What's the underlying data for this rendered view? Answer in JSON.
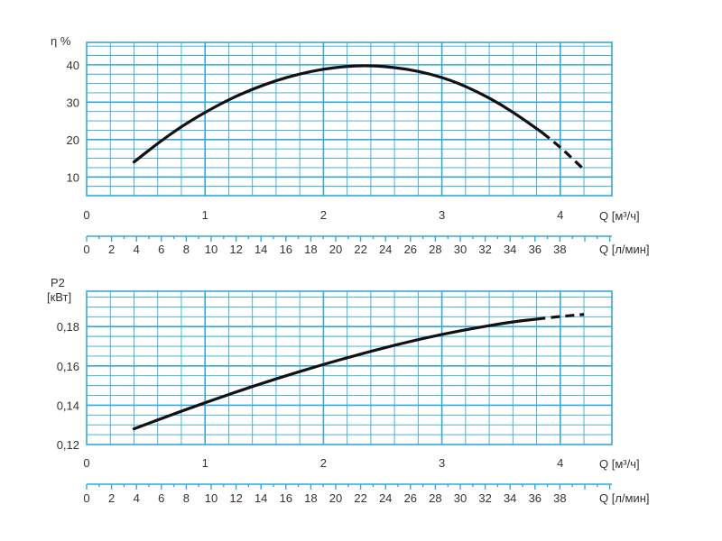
{
  "chart_data": [
    {
      "type": "line",
      "ylabel": "η %",
      "xlabel": "Q [м³/ч]",
      "xlabel2": "Q [л/мин]",
      "xlim": [
        0,
        4.3
      ],
      "ylim": [
        5,
        46
      ],
      "yticks": [
        "10",
        "20",
        "30",
        "40"
      ],
      "xticks": [
        "0",
        "1",
        "2",
        "3",
        "4"
      ],
      "xticks2": [
        "0",
        "2",
        "4",
        "6",
        "8",
        "10",
        "12",
        "14",
        "16",
        "18",
        "20",
        "22",
        "24",
        "26",
        "28",
        "30",
        "32",
        "34",
        "36",
        "38"
      ],
      "grid": true,
      "series": [
        {
          "x": [
            0.4,
            0.6,
            0.8,
            1.0,
            1.2,
            1.4,
            1.6,
            1.8,
            2.0,
            2.2,
            2.35,
            2.5,
            2.7,
            2.9,
            3.1,
            3.3,
            3.5,
            3.7,
            3.85,
            4.0,
            4.2
          ],
          "y": [
            14,
            19,
            23.5,
            27.3,
            30.7,
            33.5,
            35.8,
            37.6,
            38.9,
            39.6,
            39.8,
            39.6,
            38.9,
            37.6,
            35.6,
            32.8,
            29.4,
            25.2,
            21.8,
            18,
            12
          ],
          "dashed_from_x": 3.85,
          "color": "#111111"
        }
      ]
    },
    {
      "type": "line",
      "ylabel": "P2",
      "ylabel2": "[кВт]",
      "xlabel": "Q [м³/ч]",
      "xlabel2": "Q [л/мин]",
      "xlim": [
        0,
        4.3
      ],
      "ylim": [
        0.12,
        0.198
      ],
      "yticks": [
        "0,12",
        "0,14",
        "0,16",
        "0,18"
      ],
      "xticks": [
        "0",
        "1",
        "2",
        "3",
        "4"
      ],
      "xticks2": [
        "0",
        "2",
        "4",
        "6",
        "8",
        "10",
        "12",
        "14",
        "16",
        "18",
        "20",
        "22",
        "24",
        "26",
        "28",
        "30",
        "32",
        "34",
        "36",
        "38"
      ],
      "grid": true,
      "series": [
        {
          "x": [
            0.4,
            0.8,
            1.2,
            1.6,
            2.0,
            2.4,
            2.8,
            3.2,
            3.6,
            3.8,
            4.0,
            4.2
          ],
          "y": [
            0.128,
            0.137,
            0.1455,
            0.1535,
            0.1608,
            0.1675,
            0.1735,
            0.1785,
            0.1825,
            0.1838,
            0.1852,
            0.1862
          ],
          "dashed_from_x": 3.8,
          "color": "#111111"
        }
      ]
    }
  ]
}
